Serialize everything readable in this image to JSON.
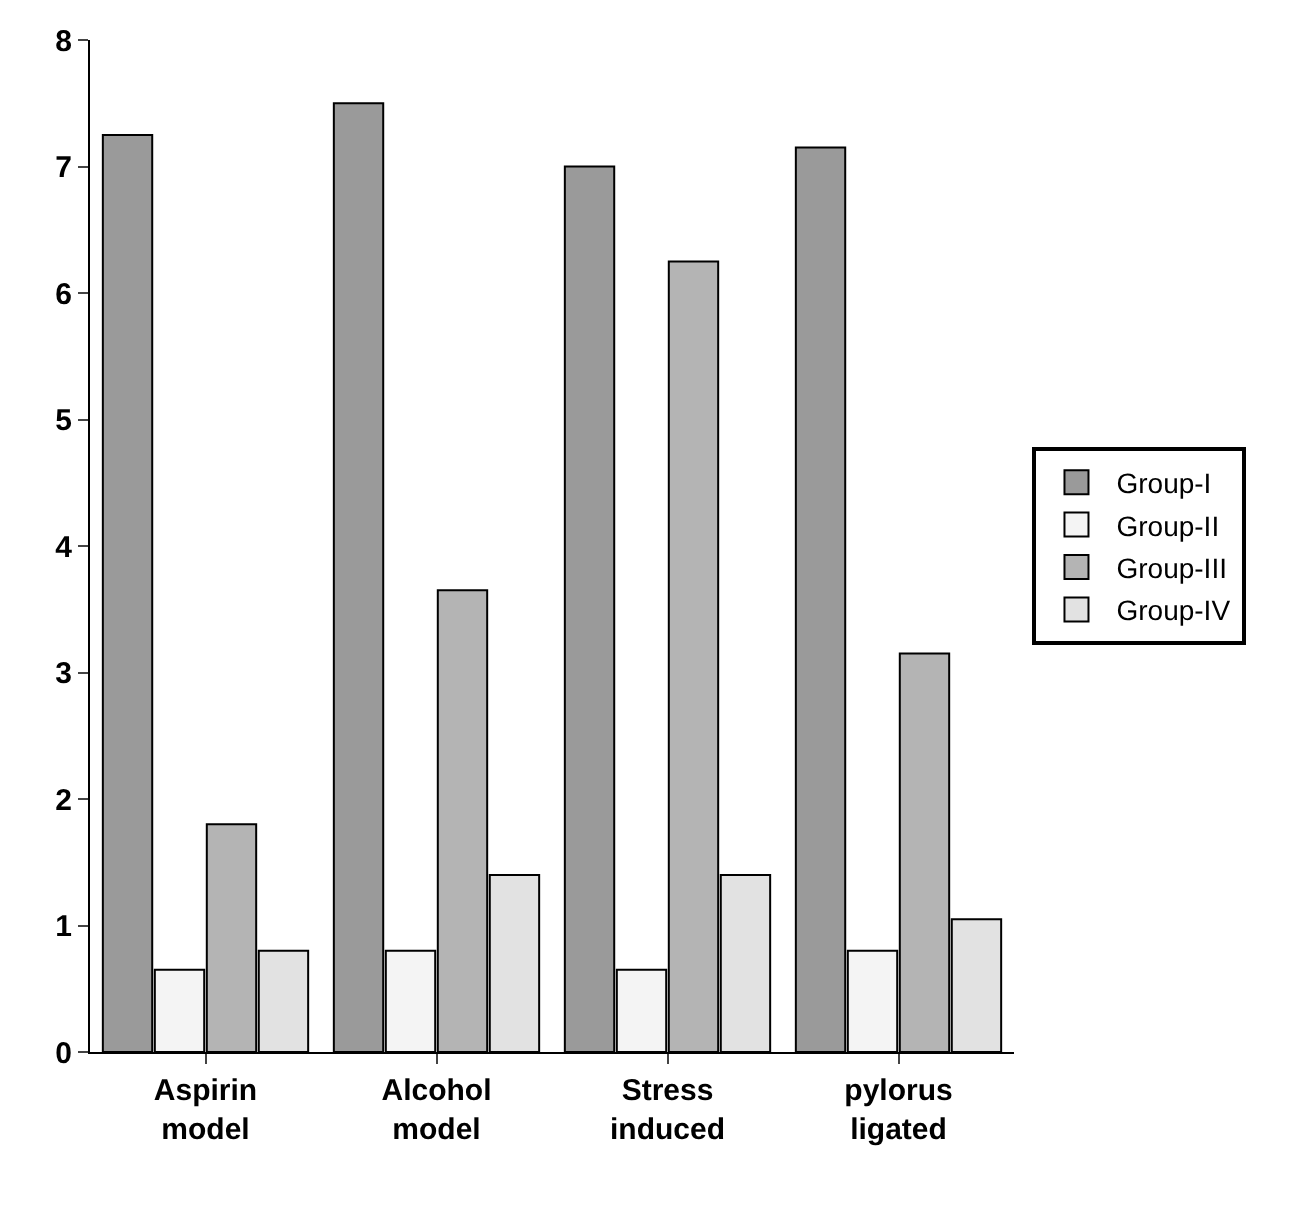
{
  "chart_data": {
    "type": "bar",
    "categories": [
      "Aspirin model",
      "Alcohol model",
      "Stress induced",
      "pylorus ligated"
    ],
    "series": [
      {
        "name": "Group-I",
        "color": "#9a9a9a",
        "values": [
          7.25,
          7.5,
          7.0,
          7.15
        ]
      },
      {
        "name": "Group-II",
        "color": "#f4f4f4",
        "values": [
          0.65,
          0.8,
          0.65,
          0.8
        ]
      },
      {
        "name": "Group-III",
        "color": "#b4b4b4",
        "values": [
          1.8,
          3.65,
          6.25,
          3.15
        ]
      },
      {
        "name": "Group-IV",
        "color": "#e2e2e2",
        "values": [
          0.8,
          1.4,
          1.4,
          1.05
        ]
      }
    ],
    "ylim": [
      0,
      8
    ],
    "yticks": [
      0,
      1,
      2,
      3,
      4,
      5,
      6,
      7,
      8
    ],
    "grid": false,
    "legend": "right"
  }
}
